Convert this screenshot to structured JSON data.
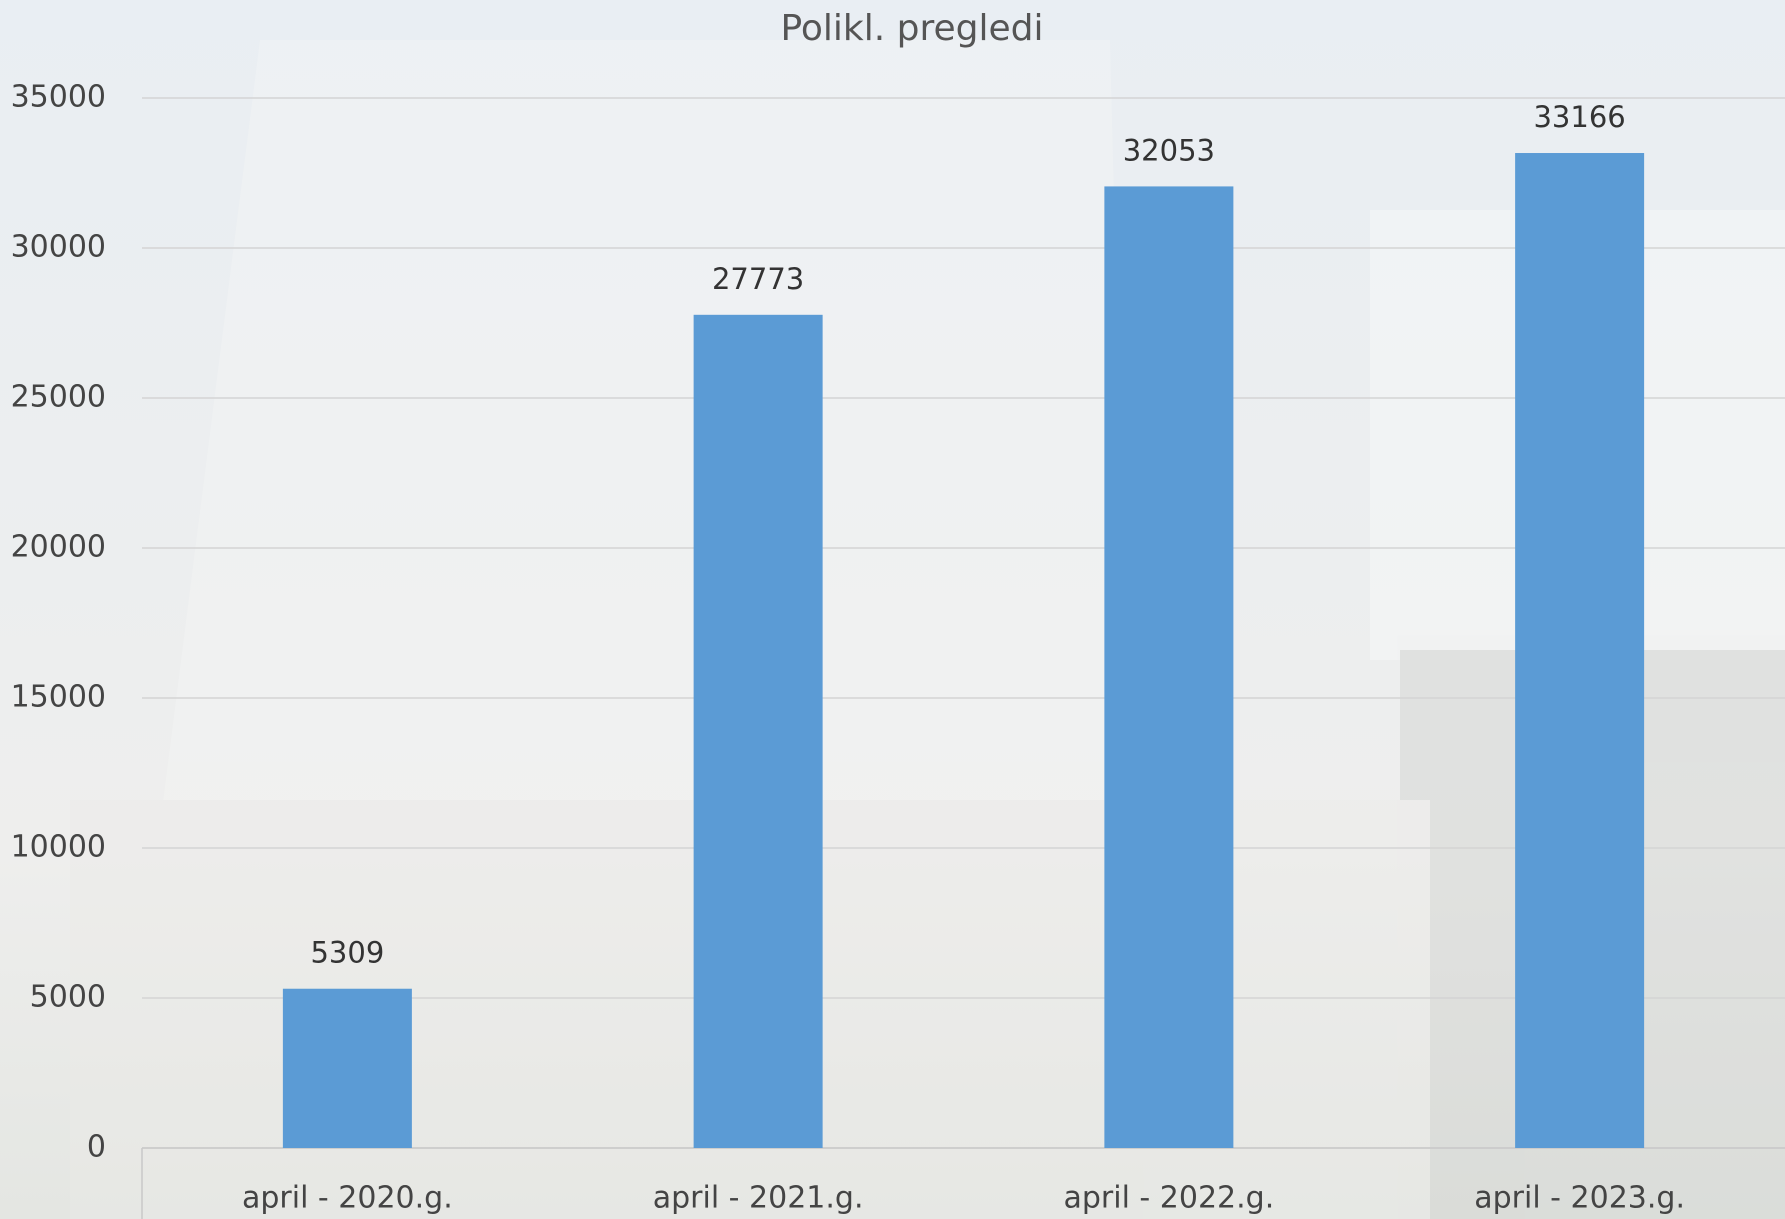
{
  "chart_data": {
    "type": "bar",
    "title": "Polikl. pregledi",
    "categories": [
      "april - 2020.g.",
      "april - 2021.g.",
      "april - 2022.g.",
      "april - 2023.g."
    ],
    "values": [
      5309,
      27773,
      32053,
      33166
    ],
    "color": "#5b9bd5",
    "ylim": [
      0,
      35000
    ],
    "yticks": [
      0,
      5000,
      10000,
      15000,
      20000,
      25000,
      30000,
      35000
    ],
    "grid": true
  }
}
